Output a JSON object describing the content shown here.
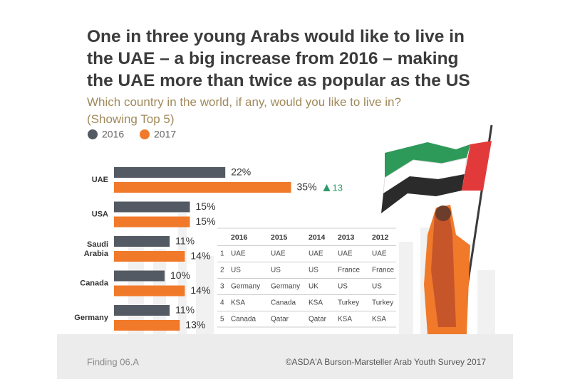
{
  "chart_data": {
    "type": "bar",
    "orientation": "horizontal",
    "title": "One in three young Arabs would like to live in the UAE – a big increase from 2016 – making the UAE more than twice as popular as the US",
    "subtitle": "Which country in the world, if any, would you like to live in? (Showing Top 5)",
    "categories": [
      "UAE",
      "USA",
      "Saudi Arabia",
      "Canada",
      "Germany"
    ],
    "series": [
      {
        "name": "2016",
        "color": "#535a63",
        "values": [
          22,
          15,
          11,
          10,
          11
        ],
        "value_labels": [
          "22%",
          "15%",
          "11%",
          "10%",
          "11%"
        ]
      },
      {
        "name": "2017",
        "color": "#f07a2a",
        "values": [
          35,
          15,
          14,
          14,
          13
        ],
        "value_labels": [
          "35%",
          "15%",
          "14%",
          "14%",
          "13%"
        ]
      }
    ],
    "annotations": [
      {
        "category": "UAE",
        "text": "13",
        "color": "#2e9a6a"
      }
    ]
  },
  "table": {
    "columns": [
      "2016",
      "2015",
      "2014",
      "2013",
      "2012"
    ],
    "rows": [
      [
        "1",
        "UAE",
        "UAE",
        "UAE",
        "UAE",
        "UAE"
      ],
      [
        "2",
        "US",
        "US",
        "US",
        "France",
        "France"
      ],
      [
        "3",
        "Germany",
        "Germany",
        "UK",
        "US",
        "US"
      ],
      [
        "4",
        "KSA",
        "Canada",
        "KSA",
        "Turkey",
        "Turkey"
      ],
      [
        "5",
        "Canada",
        "Qatar",
        "Qatar",
        "KSA",
        "KSA"
      ]
    ]
  },
  "footer": {
    "finding": "Finding 06.A",
    "source": "©ASDA'A Burson-Marsteller Arab Youth Survey 2017"
  }
}
